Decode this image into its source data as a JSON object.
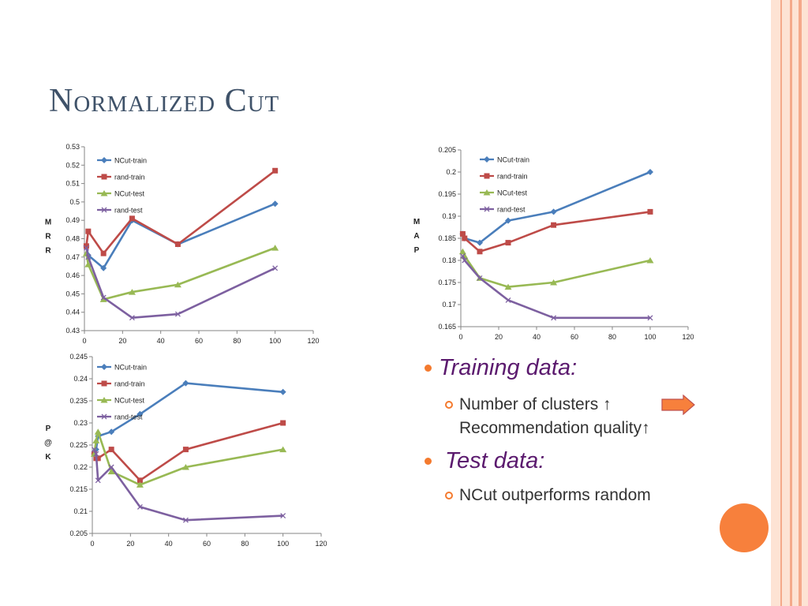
{
  "slide": {
    "title": "Normalized Cut"
  },
  "bullets": {
    "training_heading": "Training data:",
    "training_line1": "Number of clusters ↑",
    "training_line2": "Recommendation quality↑",
    "test_heading": "Test data:",
    "test_line1": "NCut outperforms random"
  },
  "colors": {
    "ncut_train": "#4a7ebb",
    "rand_train": "#be4b48",
    "ncut_test": "#98b954",
    "rand_test": "#7d60a0",
    "accent": "#f47a2e",
    "title": "#3f5269"
  },
  "chart_data": [
    {
      "type": "line",
      "ylabel": "MRR",
      "ylim": [
        0.43,
        0.53
      ],
      "yticks": [
        "0.43",
        "0.44",
        "0.45",
        "0.46",
        "0.47",
        "0.48",
        "0.49",
        "0.5",
        "0.51",
        "0.52",
        "0.53"
      ],
      "xlim": [
        0,
        120
      ],
      "xticks": [
        "0",
        "20",
        "40",
        "60",
        "80",
        "100",
        "120"
      ],
      "legend": "top-left",
      "x": [
        1,
        2,
        10,
        25,
        49,
        100
      ],
      "series": [
        {
          "name": "NCut-train",
          "marker": "diamond",
          "values": [
            0.476,
            0.471,
            0.464,
            0.49,
            0.477,
            0.499
          ]
        },
        {
          "name": "rand-train",
          "marker": "square",
          "values": [
            0.476,
            0.484,
            0.472,
            0.491,
            0.477,
            0.517
          ]
        },
        {
          "name": "NCut-test",
          "marker": "triangle",
          "values": [
            0.472,
            0.466,
            0.447,
            0.451,
            0.455,
            0.475
          ]
        },
        {
          "name": "rand-test",
          "marker": "x",
          "values": [
            0.475,
            0.47,
            0.448,
            0.437,
            0.439,
            0.464
          ]
        }
      ]
    },
    {
      "type": "line",
      "ylabel": "MAP",
      "ylim": [
        0.165,
        0.205
      ],
      "yticks": [
        "0.165",
        "0.17",
        "0.175",
        "0.18",
        "0.185",
        "0.19",
        "0.195",
        "0.2",
        "0.205"
      ],
      "xlim": [
        0,
        120
      ],
      "xticks": [
        "0",
        "20",
        "40",
        "60",
        "80",
        "100",
        "120"
      ],
      "legend": "top-left",
      "x": [
        1,
        2,
        10,
        25,
        49,
        100
      ],
      "series": [
        {
          "name": "NCut-train",
          "marker": "diamond",
          "values": [
            0.186,
            0.185,
            0.184,
            0.189,
            0.191,
            0.2
          ]
        },
        {
          "name": "rand-train",
          "marker": "square",
          "values": [
            0.186,
            0.185,
            0.182,
            0.184,
            0.188,
            0.191
          ]
        },
        {
          "name": "NCut-test",
          "marker": "triangle",
          "values": [
            0.182,
            0.181,
            0.176,
            0.174,
            0.175,
            0.18
          ]
        },
        {
          "name": "rand-test",
          "marker": "x",
          "values": [
            0.181,
            0.18,
            0.176,
            0.171,
            0.167,
            0.167
          ]
        }
      ]
    },
    {
      "type": "line",
      "ylabel": "P@K",
      "ylim": [
        0.205,
        0.245
      ],
      "yticks": [
        "0.205",
        "0.21",
        "0.215",
        "0.22",
        "0.225",
        "0.23",
        "0.235",
        "0.24",
        "0.245"
      ],
      "xlim": [
        0,
        120
      ],
      "xticks": [
        "0",
        "20",
        "40",
        "60",
        "80",
        "100",
        "120"
      ],
      "legend": "top-left",
      "x": [
        1,
        2,
        3,
        10,
        25,
        49,
        100
      ],
      "series": [
        {
          "name": "NCut-train",
          "marker": "diamond",
          "values": [
            0.223,
            0.224,
            0.227,
            0.228,
            0.232,
            0.239,
            0.237
          ]
        },
        {
          "name": "rand-train",
          "marker": "square",
          "values": [
            0.223,
            0.222,
            0.222,
            0.224,
            0.217,
            0.224,
            0.23
          ]
        },
        {
          "name": "NCut-test",
          "marker": "triangle",
          "values": [
            0.223,
            0.226,
            0.228,
            0.219,
            0.216,
            0.22,
            0.224
          ]
        },
        {
          "name": "rand-test",
          "marker": "x",
          "values": [
            0.224,
            0.223,
            0.217,
            0.22,
            0.211,
            0.208,
            0.209
          ]
        }
      ]
    }
  ]
}
